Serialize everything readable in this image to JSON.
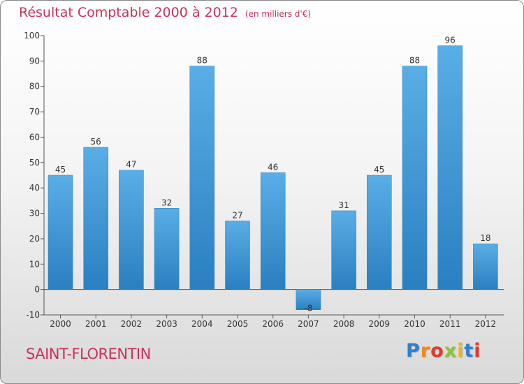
{
  "chart_data": {
    "type": "bar",
    "title": "Résultat Comptable 2000 à 2012",
    "subtitle": "(en milliers d'€)",
    "categories": [
      "2000",
      "2001",
      "2002",
      "2003",
      "2004",
      "2005",
      "2006",
      "2007",
      "2008",
      "2009",
      "2010",
      "2011",
      "2012"
    ],
    "values": [
      45,
      56,
      47,
      32,
      88,
      27,
      46,
      -8,
      31,
      45,
      88,
      96,
      18
    ],
    "ylim": [
      -10,
      100
    ],
    "yticks": [
      -10,
      0,
      10,
      20,
      30,
      40,
      50,
      60,
      70,
      80,
      90,
      100
    ],
    "grid": false,
    "bar_color_top": "#5aaee6",
    "bar_color_bottom": "#2a7fc0"
  },
  "commune": "SAINT-FLORENTIN",
  "brand": {
    "letters": [
      "P",
      "r",
      "o",
      "x",
      "i",
      "t",
      "i"
    ],
    "colors": [
      "#2f7fd0",
      "#f08a1c",
      "#e23b2c",
      "#8cc43c",
      "#f2b318",
      "#2f7fd0",
      "#e23b2c"
    ]
  },
  "colors": {
    "title": "#c8325a",
    "axis": "#555555"
  }
}
